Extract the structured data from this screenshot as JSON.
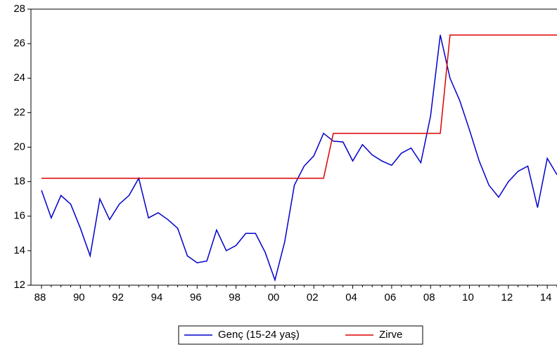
{
  "chart_data": {
    "type": "line",
    "categories": [
      "88",
      null,
      null,
      null,
      "90",
      null,
      null,
      null,
      "92",
      null,
      null,
      null,
      "94",
      null,
      null,
      null,
      "96",
      null,
      null,
      null,
      "98",
      null,
      null,
      null,
      "00",
      null,
      null,
      null,
      "02",
      null,
      null,
      null,
      "04",
      null,
      null,
      null,
      "06",
      null,
      null,
      null,
      "08",
      null,
      null,
      null,
      "10",
      null,
      null,
      null,
      "12",
      null,
      null,
      null,
      "14",
      null
    ],
    "series": [
      {
        "name": "Genç (15-24 yaş)",
        "color": "#0000cc",
        "values": [
          17.5,
          15.9,
          17.2,
          16.7,
          15.3,
          13.7,
          17.0,
          15.8,
          16.7,
          17.2,
          18.2,
          15.9,
          16.2,
          15.8,
          15.3,
          13.7,
          13.3,
          13.4,
          15.2,
          14.0,
          14.3,
          15.0,
          15.0,
          13.9,
          12.3,
          14.5,
          17.8,
          18.9,
          19.5,
          20.8,
          20.35,
          20.3,
          19.2,
          20.15,
          19.55,
          19.2,
          18.95,
          19.65,
          19.95,
          19.1,
          21.8,
          26.5,
          24.0,
          22.7,
          21.0,
          19.2,
          17.8,
          17.1,
          18.0,
          18.6,
          18.9,
          16.5,
          19.35,
          18.4
        ]
      },
      {
        "name": "Zirve",
        "color": "#dd0000",
        "values": [
          18.2,
          18.2,
          18.2,
          18.2,
          18.2,
          18.2,
          18.2,
          18.2,
          18.2,
          18.2,
          18.2,
          18.2,
          18.2,
          18.2,
          18.2,
          18.2,
          18.2,
          18.2,
          18.2,
          18.2,
          18.2,
          18.2,
          18.2,
          18.2,
          18.2,
          18.2,
          18.2,
          18.2,
          18.2,
          18.2,
          20.8,
          20.8,
          20.8,
          20.8,
          20.8,
          20.8,
          20.8,
          20.8,
          20.8,
          20.8,
          20.8,
          20.8,
          26.5,
          26.5,
          26.5,
          26.5,
          26.5,
          26.5,
          26.5,
          26.5,
          26.5,
          26.5,
          26.5,
          26.5
        ]
      }
    ],
    "ylim": [
      12,
      28
    ],
    "yticks": [
      12,
      14,
      16,
      18,
      20,
      22,
      24,
      26,
      28
    ],
    "legend": "bottom"
  }
}
